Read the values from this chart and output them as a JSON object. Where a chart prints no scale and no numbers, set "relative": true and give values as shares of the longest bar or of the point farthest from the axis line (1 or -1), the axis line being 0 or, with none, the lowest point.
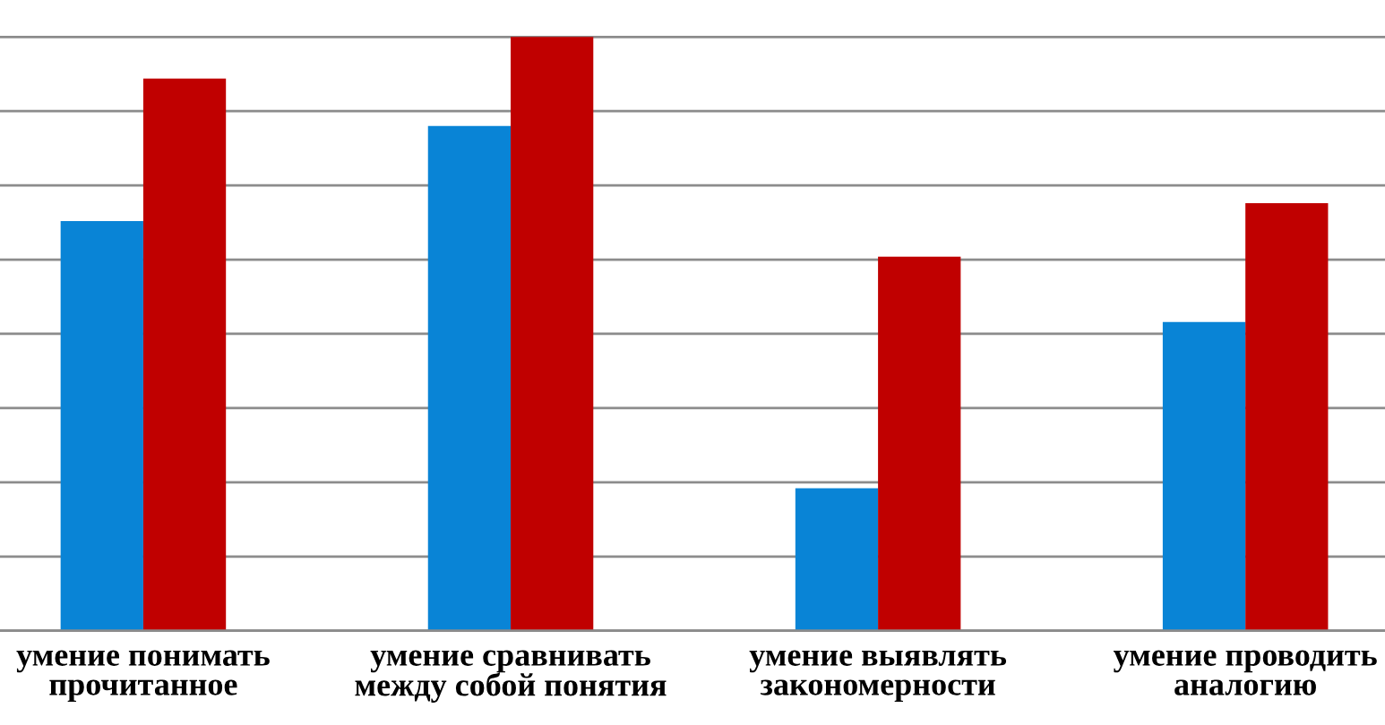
{
  "chart_data": {
    "type": "bar",
    "relative": true,
    "categories": [
      "умение понимать\nпрочитанное",
      "умение сравнивать\nмежду собой понятия",
      "умение выявлять\nзакономерности",
      "умение проводить\nаналогию"
    ],
    "series": [
      {
        "color": "#0984d6",
        "values": [
          0.69,
          0.85,
          0.24,
          0.52
        ]
      },
      {
        "color": "#c00000",
        "values": [
          0.93,
          1.0,
          0.63,
          0.72
        ]
      }
    ],
    "grid": "y",
    "tick_labels": "x"
  }
}
